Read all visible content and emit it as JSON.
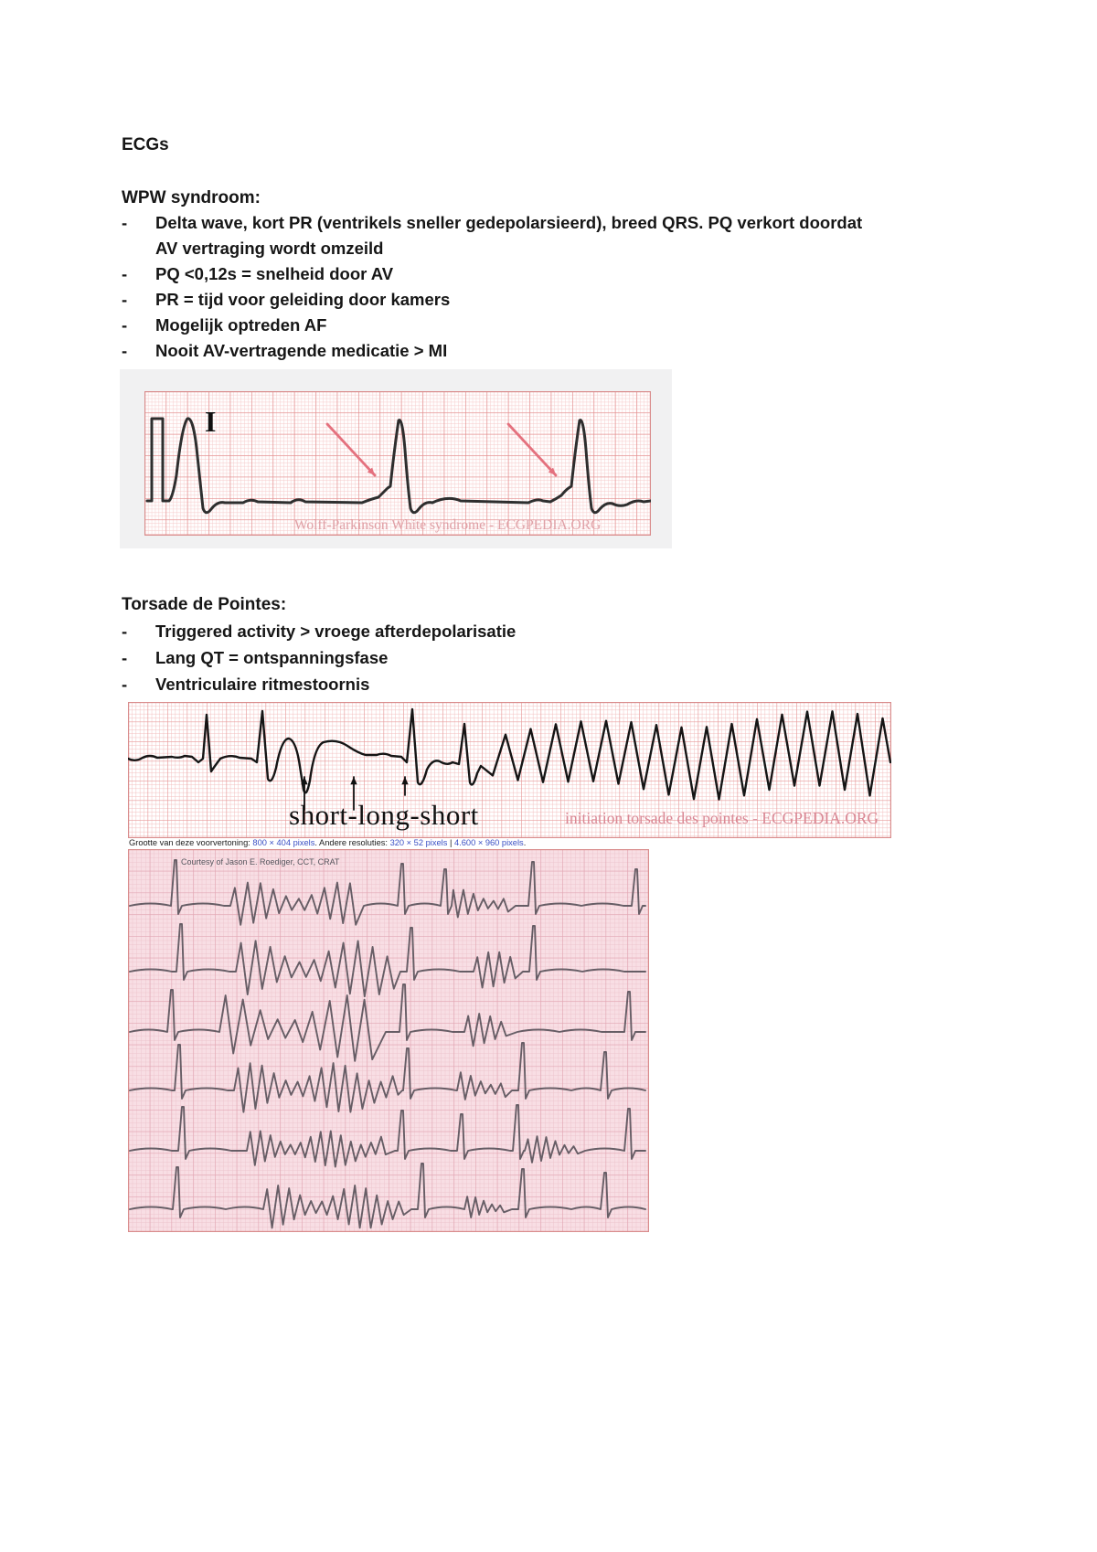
{
  "page": {
    "title": "ECGs",
    "bullet_marker": "-"
  },
  "sections": [
    {
      "heading": "WPW syndroom:",
      "bullets": [
        "Delta wave, kort PR (ventrikels sneller gedepolarsieerd), breed QRS. PQ verkort doordat AV vertraging wordt omzeild",
        "PQ <0,12s = snelheid door AV",
        "PR = tijd voor geleiding door kamers",
        "Mogelijk optreden AF",
        "Nooit AV-vertragende medicatie > MI"
      ]
    },
    {
      "heading": "Torsade de Pointes:",
      "bullets": [
        "Triggered activity > vroege afterdepolarisatie",
        "Lang QT = ontspanningsfase",
        "Ventriculaire ritmestoornis"
      ]
    }
  ],
  "figures": {
    "wpw": {
      "lead_label": "I",
      "watermark": "Wolff-Parkinson White syndrome - ECGPEDIA.ORG"
    },
    "torsade_strip": {
      "annotation": "short-long-short",
      "watermark": "initiation torsade des pointes - ECGPEDIA.ORG"
    },
    "caption": {
      "prefix": "Grootte van deze voorvertoning: ",
      "link1": "800 × 404 pixels",
      "mid": ". Andere resoluties: ",
      "link2": "320 × 52 pixels",
      "sep": " | ",
      "link3": "4.600 × 960 pixels",
      "end": "."
    },
    "bottom_ecg": {
      "courtesy": "Courtesy of Jason E. Roediger, CCT, CRAT"
    }
  },
  "colors": {
    "wpw_grid_minor": "#f6caca",
    "wpw_grid_major": "#e28b8b",
    "wpw_bg": "#fffdfd",
    "wpw_trace": "#2e2e2e",
    "wpw_arrow": "#e4717e",
    "wpw_watermark": "#dfa0a6",
    "torsade_grid_minor": "#f2bcbc",
    "torsade_grid_major": "#e79b9b",
    "torsade_bg": "#ffffff",
    "torsade_trace": "#151515",
    "torsade_watermark": "#d98895",
    "bottom_bg": "#f8dee4",
    "bottom_grid_minor": "#edc4cd",
    "bottom_grid_major": "#e2a6b3",
    "bottom_trace": "#5a525b",
    "bottom_courtesy": "#56565e",
    "link_blue": "#3a4fc4",
    "figure_gray": "#f1f1f2",
    "strip_border": "#d98c8c"
  }
}
